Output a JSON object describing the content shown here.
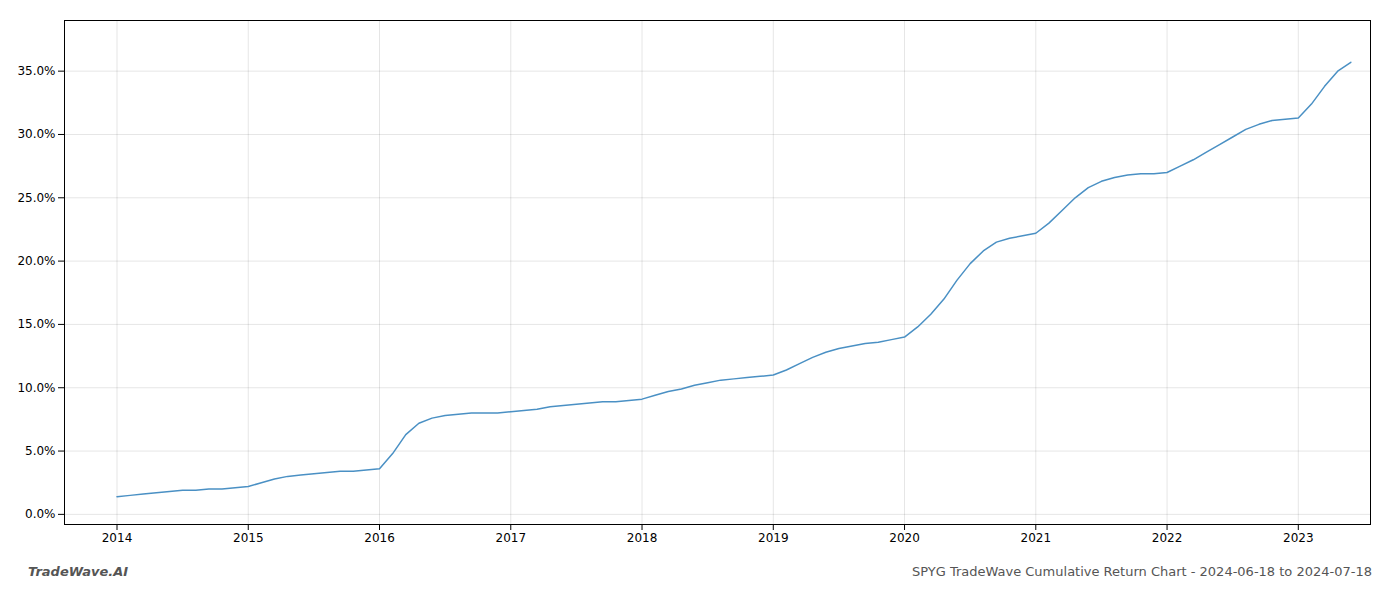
{
  "chart_data": {
    "type": "line",
    "color": "#4a90c4",
    "grid": true,
    "annotations": [
      "TradeWave.AI",
      "SPYG TradeWave Cumulative Return Chart - 2024-06-18 to 2024-07-18"
    ],
    "xlim": [
      2013.6,
      2023.55
    ],
    "ylim": [
      -0.008,
      0.39
    ],
    "xticks": [
      2014,
      2015,
      2016,
      2017,
      2018,
      2019,
      2020,
      2021,
      2022,
      2023
    ],
    "yticks": [
      {
        "value": 0.0,
        "label": "0.0%"
      },
      {
        "value": 0.05,
        "label": "5.0%"
      },
      {
        "value": 0.1,
        "label": "10.0%"
      },
      {
        "value": 0.15,
        "label": "15.0%"
      },
      {
        "value": 0.2,
        "label": "20.0%"
      },
      {
        "value": 0.25,
        "label": "25.0%"
      },
      {
        "value": 0.3,
        "label": "30.0%"
      },
      {
        "value": 0.35,
        "label": "35.0%"
      }
    ],
    "x": [
      2014.0,
      2014.1,
      2014.2,
      2014.3,
      2014.4,
      2014.5,
      2014.6,
      2014.7,
      2014.8,
      2014.9,
      2015.0,
      2015.1,
      2015.2,
      2015.3,
      2015.4,
      2015.5,
      2015.6,
      2015.7,
      2015.8,
      2015.9,
      2016.0,
      2016.1,
      2016.2,
      2016.3,
      2016.4,
      2016.5,
      2016.6,
      2016.7,
      2016.8,
      2016.9,
      2017.0,
      2017.1,
      2017.2,
      2017.3,
      2017.4,
      2017.5,
      2017.6,
      2017.7,
      2017.8,
      2017.9,
      2018.0,
      2018.1,
      2018.2,
      2018.3,
      2018.4,
      2018.5,
      2018.6,
      2018.7,
      2018.8,
      2018.9,
      2019.0,
      2019.1,
      2019.2,
      2019.3,
      2019.4,
      2019.5,
      2019.6,
      2019.7,
      2019.8,
      2019.9,
      2020.0,
      2020.1,
      2020.2,
      2020.3,
      2020.4,
      2020.5,
      2020.6,
      2020.7,
      2020.8,
      2020.9,
      2021.0,
      2021.1,
      2021.2,
      2021.3,
      2021.4,
      2021.5,
      2021.6,
      2021.7,
      2021.8,
      2021.9,
      2022.0,
      2022.1,
      2022.2,
      2022.3,
      2022.4,
      2022.5,
      2022.6,
      2022.7,
      2022.8,
      2022.9,
      2023.0,
      2023.1,
      2023.2,
      2023.3,
      2023.4
    ],
    "values": [
      0.014,
      0.015,
      0.016,
      0.017,
      0.018,
      0.019,
      0.019,
      0.02,
      0.02,
      0.021,
      0.022,
      0.025,
      0.028,
      0.03,
      0.031,
      0.032,
      0.033,
      0.034,
      0.034,
      0.035,
      0.036,
      0.048,
      0.063,
      0.072,
      0.076,
      0.078,
      0.079,
      0.08,
      0.08,
      0.08,
      0.081,
      0.082,
      0.083,
      0.085,
      0.086,
      0.087,
      0.088,
      0.089,
      0.089,
      0.09,
      0.091,
      0.094,
      0.097,
      0.099,
      0.102,
      0.104,
      0.106,
      0.107,
      0.108,
      0.109,
      0.11,
      0.114,
      0.119,
      0.124,
      0.128,
      0.131,
      0.133,
      0.135,
      0.136,
      0.138,
      0.14,
      0.148,
      0.158,
      0.17,
      0.185,
      0.198,
      0.208,
      0.215,
      0.218,
      0.22,
      0.222,
      0.23,
      0.24,
      0.25,
      0.258,
      0.263,
      0.266,
      0.268,
      0.269,
      0.269,
      0.27,
      0.275,
      0.28,
      0.286,
      0.292,
      0.298,
      0.304,
      0.308,
      0.311,
      0.312,
      0.313,
      0.324,
      0.338,
      0.35,
      0.357
    ]
  }
}
